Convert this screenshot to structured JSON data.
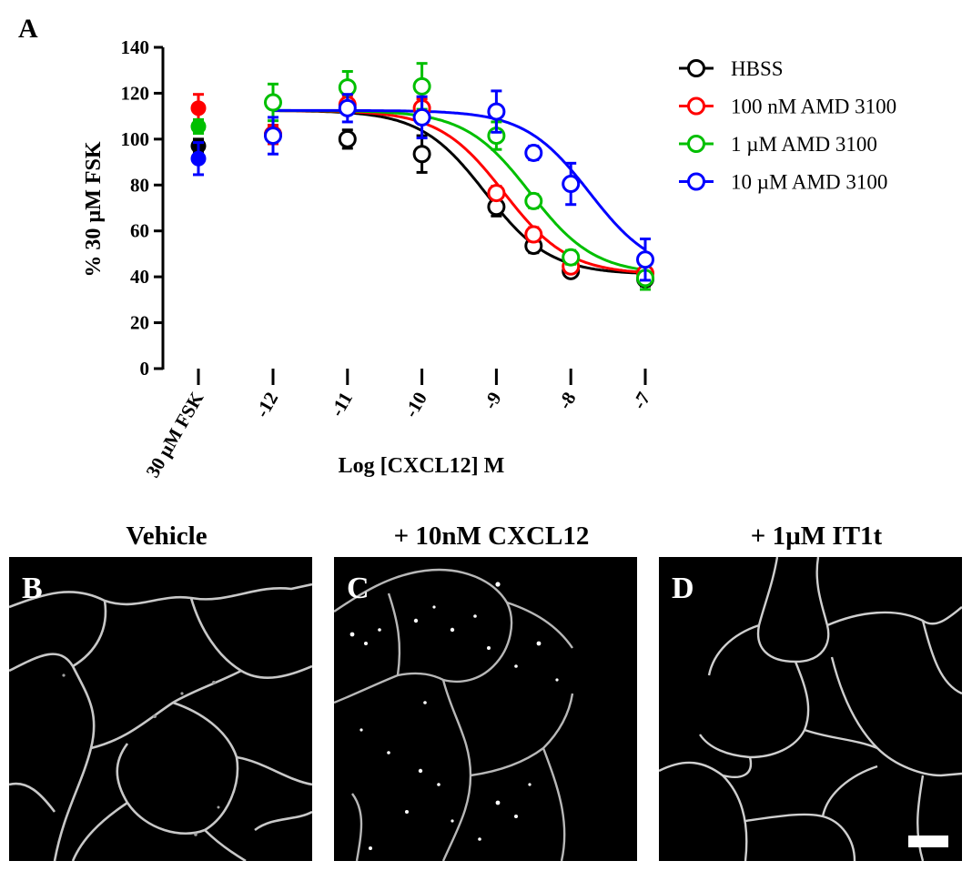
{
  "panel_a": {
    "letter": "A"
  },
  "chart_data": {
    "type": "scatter",
    "title": "",
    "xlabel": "Log [CXCL12] M",
    "ylabel": "% 30 µM FSK",
    "ylim": [
      0,
      140
    ],
    "yticks": [
      "0",
      "20",
      "40",
      "60",
      "80",
      "100",
      "120",
      "140"
    ],
    "xticks": [
      "30 µM FSK",
      "-12",
      "-11",
      "-10",
      "-9",
      "-8.5",
      "-8",
      "-7"
    ],
    "xtick_labels_shown": [
      "30 µM FSK",
      "-12",
      "-11",
      "-10",
      "-9",
      "-8",
      "-7"
    ],
    "legend_position": "top-right",
    "x_log_concentrations": [
      -12,
      -11,
      -10,
      -9,
      -8.5,
      -8,
      -7
    ],
    "series": [
      {
        "name": "HBSS",
        "color": "#000000",
        "fsk_control": {
          "value": 97,
          "err": 3
        },
        "points": [
          {
            "x": -12,
            "y": 102,
            "err": 4
          },
          {
            "x": -11,
            "y": 100,
            "err": 4
          },
          {
            "x": -10,
            "y": 93.5,
            "err": 8
          },
          {
            "x": -9,
            "y": 70.5,
            "err": 4
          },
          {
            "x": -8.5,
            "y": 53.5,
            "err": 3
          },
          {
            "x": -8,
            "y": 42.5,
            "err": 2
          },
          {
            "x": -7,
            "y": 39,
            "err": 3
          }
        ],
        "fit": {
          "top": 112.5,
          "bottom": 41,
          "log_ec50": -9.15,
          "hill": 1
        }
      },
      {
        "name": "100 nM AMD 3100",
        "color": "#ff0000",
        "fsk_control": {
          "value": 113.5,
          "err": 6
        },
        "points": [
          {
            "x": -12,
            "y": 102,
            "err": 4
          },
          {
            "x": -11,
            "y": 115,
            "err": 4
          },
          {
            "x": -10,
            "y": 113.5,
            "err": 4
          },
          {
            "x": -9,
            "y": 76.5,
            "err": 3
          },
          {
            "x": -8.5,
            "y": 58.5,
            "err": 3
          },
          {
            "x": -8,
            "y": 44.5,
            "err": 2
          },
          {
            "x": -7,
            "y": 41.5,
            "err": 3
          }
        ],
        "fit": {
          "top": 112.5,
          "bottom": 41,
          "log_ec50": -8.9,
          "hill": 1
        }
      },
      {
        "name": "1 µM AMD 3100",
        "color": "#00bf00",
        "fsk_control": {
          "value": 105.5,
          "err": 3
        },
        "points": [
          {
            "x": -12,
            "y": 116,
            "err": 8
          },
          {
            "x": -11,
            "y": 122.5,
            "err": 7
          },
          {
            "x": -10,
            "y": 123,
            "err": 10
          },
          {
            "x": -9,
            "y": 101.5,
            "err": 6
          },
          {
            "x": -8.5,
            "y": 73,
            "err": 3
          },
          {
            "x": -8,
            "y": 48.5,
            "err": 3
          },
          {
            "x": -7,
            "y": 39.5,
            "err": 5
          }
        ],
        "fit": {
          "top": 112.5,
          "bottom": 41,
          "log_ec50": -8.55,
          "hill": 1
        }
      },
      {
        "name": "10 µM AMD 3100",
        "color": "#0000ff",
        "fsk_control": {
          "value": 91.5,
          "err": 7
        },
        "points": [
          {
            "x": -12,
            "y": 101.5,
            "err": 8
          },
          {
            "x": -11,
            "y": 113.5,
            "err": 6
          },
          {
            "x": -10,
            "y": 109.5,
            "err": 9
          },
          {
            "x": -9,
            "y": 112,
            "err": 9
          },
          {
            "x": -8.5,
            "y": 94,
            "err": 3
          },
          {
            "x": -8,
            "y": 80.5,
            "err": 9
          },
          {
            "x": -7,
            "y": 47.5,
            "err": 9
          }
        ],
        "fit": {
          "top": 112.5,
          "bottom": 41,
          "log_ec50": -7.75,
          "hill": 1
        }
      }
    ]
  },
  "panels": [
    {
      "letter": "B",
      "title": "Vehicle"
    },
    {
      "letter": "C",
      "title": "+ 10nM CXCL12"
    },
    {
      "letter": "D",
      "title": "+ 1µM IT1t"
    }
  ]
}
